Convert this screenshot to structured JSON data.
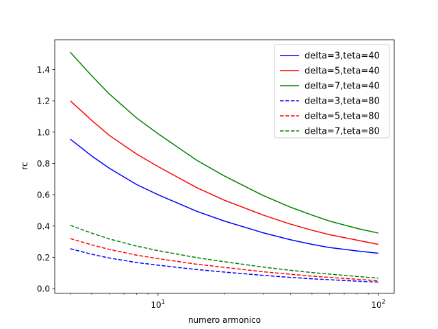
{
  "chart_data": {
    "type": "line",
    "xlabel": "numero armonico",
    "ylabel": "rc",
    "xscale": "log",
    "xlim": [
      3.4,
      118
    ],
    "ylim": [
      -0.03,
      1.59
    ],
    "xticks": [
      {
        "value": 10,
        "base": "10",
        "exp": "1"
      },
      {
        "value": 100,
        "base": "10",
        "exp": "2"
      }
    ],
    "yticks": [
      {
        "value": 0.0,
        "label": "0.0"
      },
      {
        "value": 0.2,
        "label": "0.2"
      },
      {
        "value": 0.4,
        "label": "0.4"
      },
      {
        "value": 0.6,
        "label": "0.6"
      },
      {
        "value": 0.8,
        "label": "0.8"
      },
      {
        "value": 1.0,
        "label": "1.0"
      },
      {
        "value": 1.2,
        "label": "1.2"
      },
      {
        "value": 1.4,
        "label": "1.4"
      }
    ],
    "grid": false,
    "legend_position": "top-right",
    "x": [
      4,
      5,
      6,
      8,
      10,
      15,
      20,
      30,
      40,
      50,
      60,
      80,
      100
    ],
    "series": [
      {
        "name": "delta=3,teta=40",
        "color": "#0000ff",
        "dash": "solid",
        "values": [
          0.955,
          0.848,
          0.77,
          0.665,
          0.6,
          0.494,
          0.432,
          0.357,
          0.312,
          0.283,
          0.263,
          0.241,
          0.226
        ]
      },
      {
        "name": "delta=5,teta=40",
        "color": "#ff0000",
        "dash": "solid",
        "values": [
          1.2,
          1.075,
          0.98,
          0.86,
          0.78,
          0.645,
          0.565,
          0.47,
          0.412,
          0.373,
          0.345,
          0.31,
          0.283
        ]
      },
      {
        "name": "delta=7,teta=40",
        "color": "#008000",
        "dash": "solid",
        "values": [
          1.51,
          1.36,
          1.245,
          1.09,
          0.99,
          0.82,
          0.72,
          0.595,
          0.52,
          0.47,
          0.432,
          0.385,
          0.355
        ]
      },
      {
        "name": "delta=3,teta=80",
        "color": "#0000ff",
        "dash": "dashed",
        "values": [
          0.255,
          0.22,
          0.196,
          0.167,
          0.15,
          0.122,
          0.106,
          0.085,
          0.072,
          0.063,
          0.057,
          0.048,
          0.042
        ]
      },
      {
        "name": "delta=5,teta=80",
        "color": "#ff0000",
        "dash": "dashed",
        "values": [
          0.32,
          0.28,
          0.251,
          0.214,
          0.192,
          0.156,
          0.136,
          0.108,
          0.092,
          0.08,
          0.072,
          0.06,
          0.05
        ]
      },
      {
        "name": "delta=7,teta=80",
        "color": "#008000",
        "dash": "dashed",
        "values": [
          0.405,
          0.355,
          0.318,
          0.272,
          0.243,
          0.198,
          0.172,
          0.138,
          0.117,
          0.103,
          0.093,
          0.078,
          0.067
        ]
      }
    ]
  }
}
